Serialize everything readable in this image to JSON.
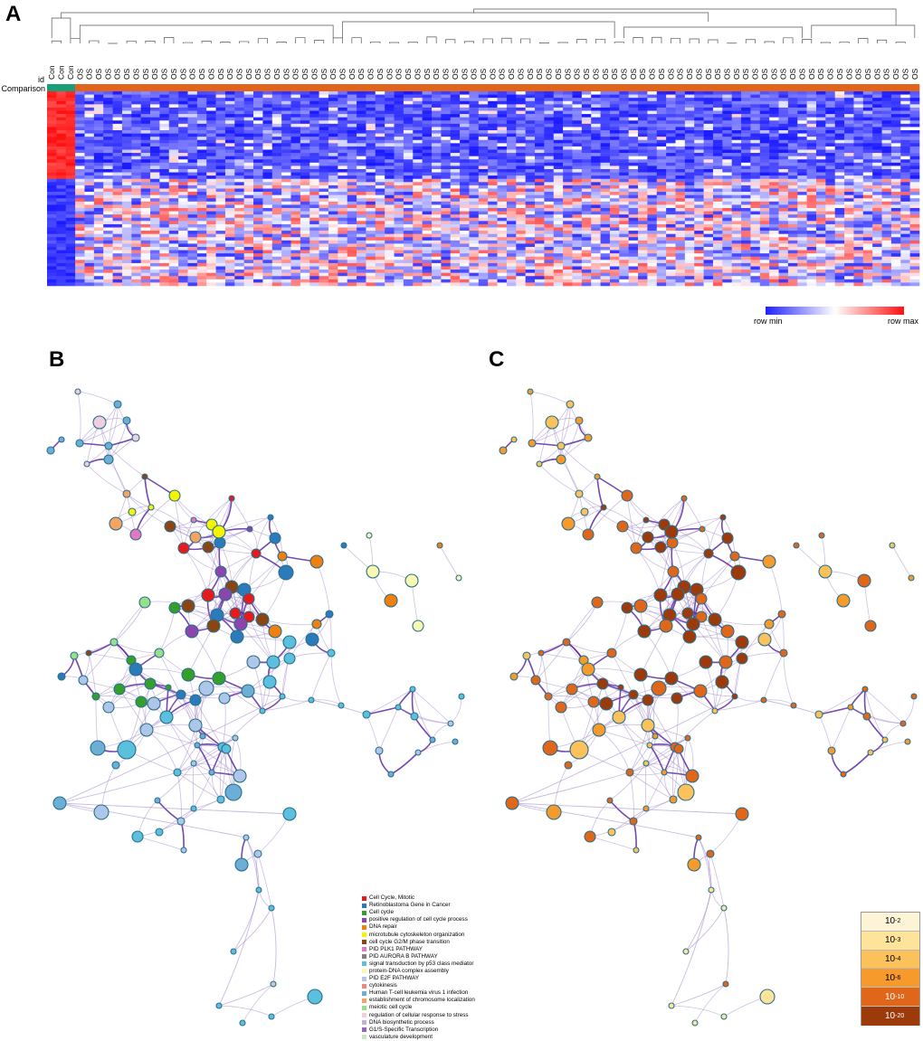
{
  "panels": {
    "a": "A",
    "b": "B",
    "c": "C"
  },
  "heatmap": {
    "row_labels": [
      "id",
      "Comparison"
    ],
    "column_labels": [
      "Con",
      "Con",
      "Con",
      "OS",
      "OS",
      "OS",
      "OS",
      "OS",
      "OS",
      "OS",
      "OS",
      "OS",
      "OS",
      "OS",
      "OS",
      "OS",
      "OS",
      "OS",
      "OS",
      "OS",
      "OS",
      "OS",
      "OS",
      "OS",
      "OS",
      "OS",
      "OS",
      "OS",
      "OS",
      "OS",
      "OS",
      "OS",
      "OS",
      "OS",
      "OS",
      "OS",
      "OS",
      "OS",
      "OS",
      "OS",
      "OS",
      "OS",
      "OS",
      "OS",
      "OS",
      "OS",
      "OS",
      "OS",
      "OS",
      "OS",
      "OS",
      "OS",
      "OS",
      "OS",
      "OS",
      "OS",
      "OS",
      "OS",
      "OS",
      "OS",
      "OS",
      "OS",
      "OS",
      "OS",
      "OS",
      "OS",
      "OS",
      "OS",
      "OS",
      "OS",
      "OS",
      "OS",
      "OS",
      "OS",
      "OS",
      "OS",
      "OS",
      "OS",
      "OS",
      "OS",
      "OS",
      "OS",
      "OS",
      "OS",
      "OS",
      "OS",
      "OS",
      "OS",
      "OS",
      "OS",
      "OS",
      "OS",
      "OS"
    ],
    "group_colors": {
      "Con": "#1a9e77",
      "OS": "#e0641c"
    },
    "colorbar": {
      "min_label": "row  min",
      "max_label": "row  max",
      "low_color": "#2020ff",
      "mid_color": "#ffffff",
      "high_color": "#ff1010"
    }
  },
  "network_b_legend": [
    {
      "label": "Cell Cycle, Mitotic",
      "color": "#e41a1c"
    },
    {
      "label": "Retinoblastoma Gene in Cancer",
      "color": "#2b7bba"
    },
    {
      "label": "Cell cycle",
      "color": "#33a02c"
    },
    {
      "label": "positive regulation of cell cycle process",
      "color": "#8e44ad"
    },
    {
      "label": "DNA repair",
      "color": "#f07f0f"
    },
    {
      "label": "microtubule cytoskeleton organization",
      "color": "#f5f500"
    },
    {
      "label": "cell cycle G2/M phase transition",
      "color": "#8b4513"
    },
    {
      "label": "PID PLK1 PATHWAY",
      "color": "#e377c2"
    },
    {
      "label": "PID AURORA B PATHWAY",
      "color": "#808080"
    },
    {
      "label": "signal transduction by p53 class mediator",
      "color": "#5bc0de"
    },
    {
      "label": "protein-DNA complex assembly",
      "color": "#f8f8b0"
    },
    {
      "label": "PID E2F PATHWAY",
      "color": "#aec7e8"
    },
    {
      "label": "cytokinesis",
      "color": "#f4837d"
    },
    {
      "label": "Human T-cell leukemia virus 1 infection",
      "color": "#6baed6"
    },
    {
      "label": "establishment of chromosome localization",
      "color": "#f4a460"
    },
    {
      "label": "meiotic cell cycle",
      "color": "#98df8a"
    },
    {
      "label": "regulation of cellular response to stress",
      "color": "#f2cde0"
    },
    {
      "label": "DNA biosynthetic process",
      "color": "#c5b0d5"
    },
    {
      "label": "G1/S-Specific Transcription",
      "color": "#9467bd"
    },
    {
      "label": "vasculature development",
      "color": "#c7e9c0"
    }
  ],
  "network_c_legend": [
    {
      "base": "10",
      "exp": "-2",
      "color": "#fdf4d8"
    },
    {
      "base": "10",
      "exp": "-3",
      "color": "#fde49a"
    },
    {
      "base": "10",
      "exp": "-4",
      "color": "#fbc15a"
    },
    {
      "base": "10",
      "exp": "-6",
      "color": "#f69a2c"
    },
    {
      "base": "10",
      "exp": "-10",
      "color": "#e0661a"
    },
    {
      "base": "10",
      "exp": "-20",
      "color": "#9c3a0c"
    }
  ]
}
